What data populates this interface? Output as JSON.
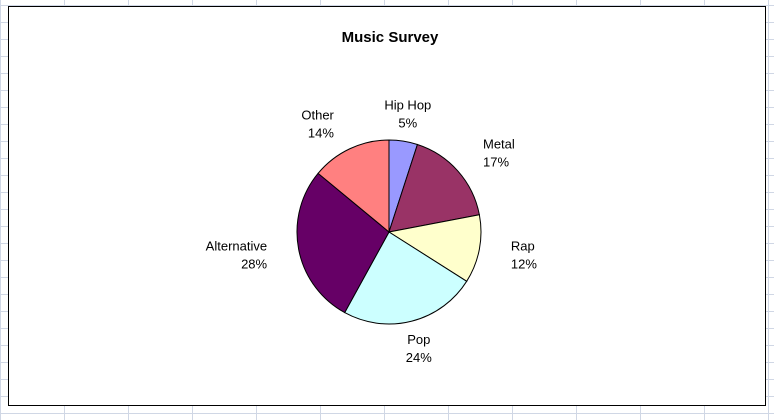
{
  "chart_data": {
    "type": "pie",
    "title": "Music Survey",
    "slices": [
      {
        "label": "Hip Hop",
        "value": 5,
        "value_label": "5%",
        "color": "#9999ff"
      },
      {
        "label": "Metal",
        "value": 17,
        "value_label": "17%",
        "color": "#993366"
      },
      {
        "label": "Rap",
        "value": 12,
        "value_label": "12%",
        "color": "#ffffcc"
      },
      {
        "label": "Pop",
        "value": 24,
        "value_label": "24%",
        "color": "#ccffff"
      },
      {
        "label": "Alternative",
        "value": 28,
        "value_label": "28%",
        "color": "#660066"
      },
      {
        "label": "Other",
        "value": 14,
        "value_label": "14%",
        "color": "#ff8080"
      }
    ],
    "legend": "none"
  }
}
